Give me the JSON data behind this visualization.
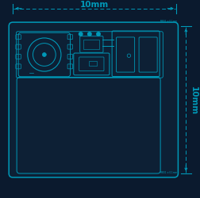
{
  "bg_color": "#0b1a2e",
  "line_color": "#0099b8",
  "board_fill": "#0d2035",
  "width_mm": "10mm",
  "height_mm": "10mm",
  "small_label": "MK01 ± 0.1mm"
}
